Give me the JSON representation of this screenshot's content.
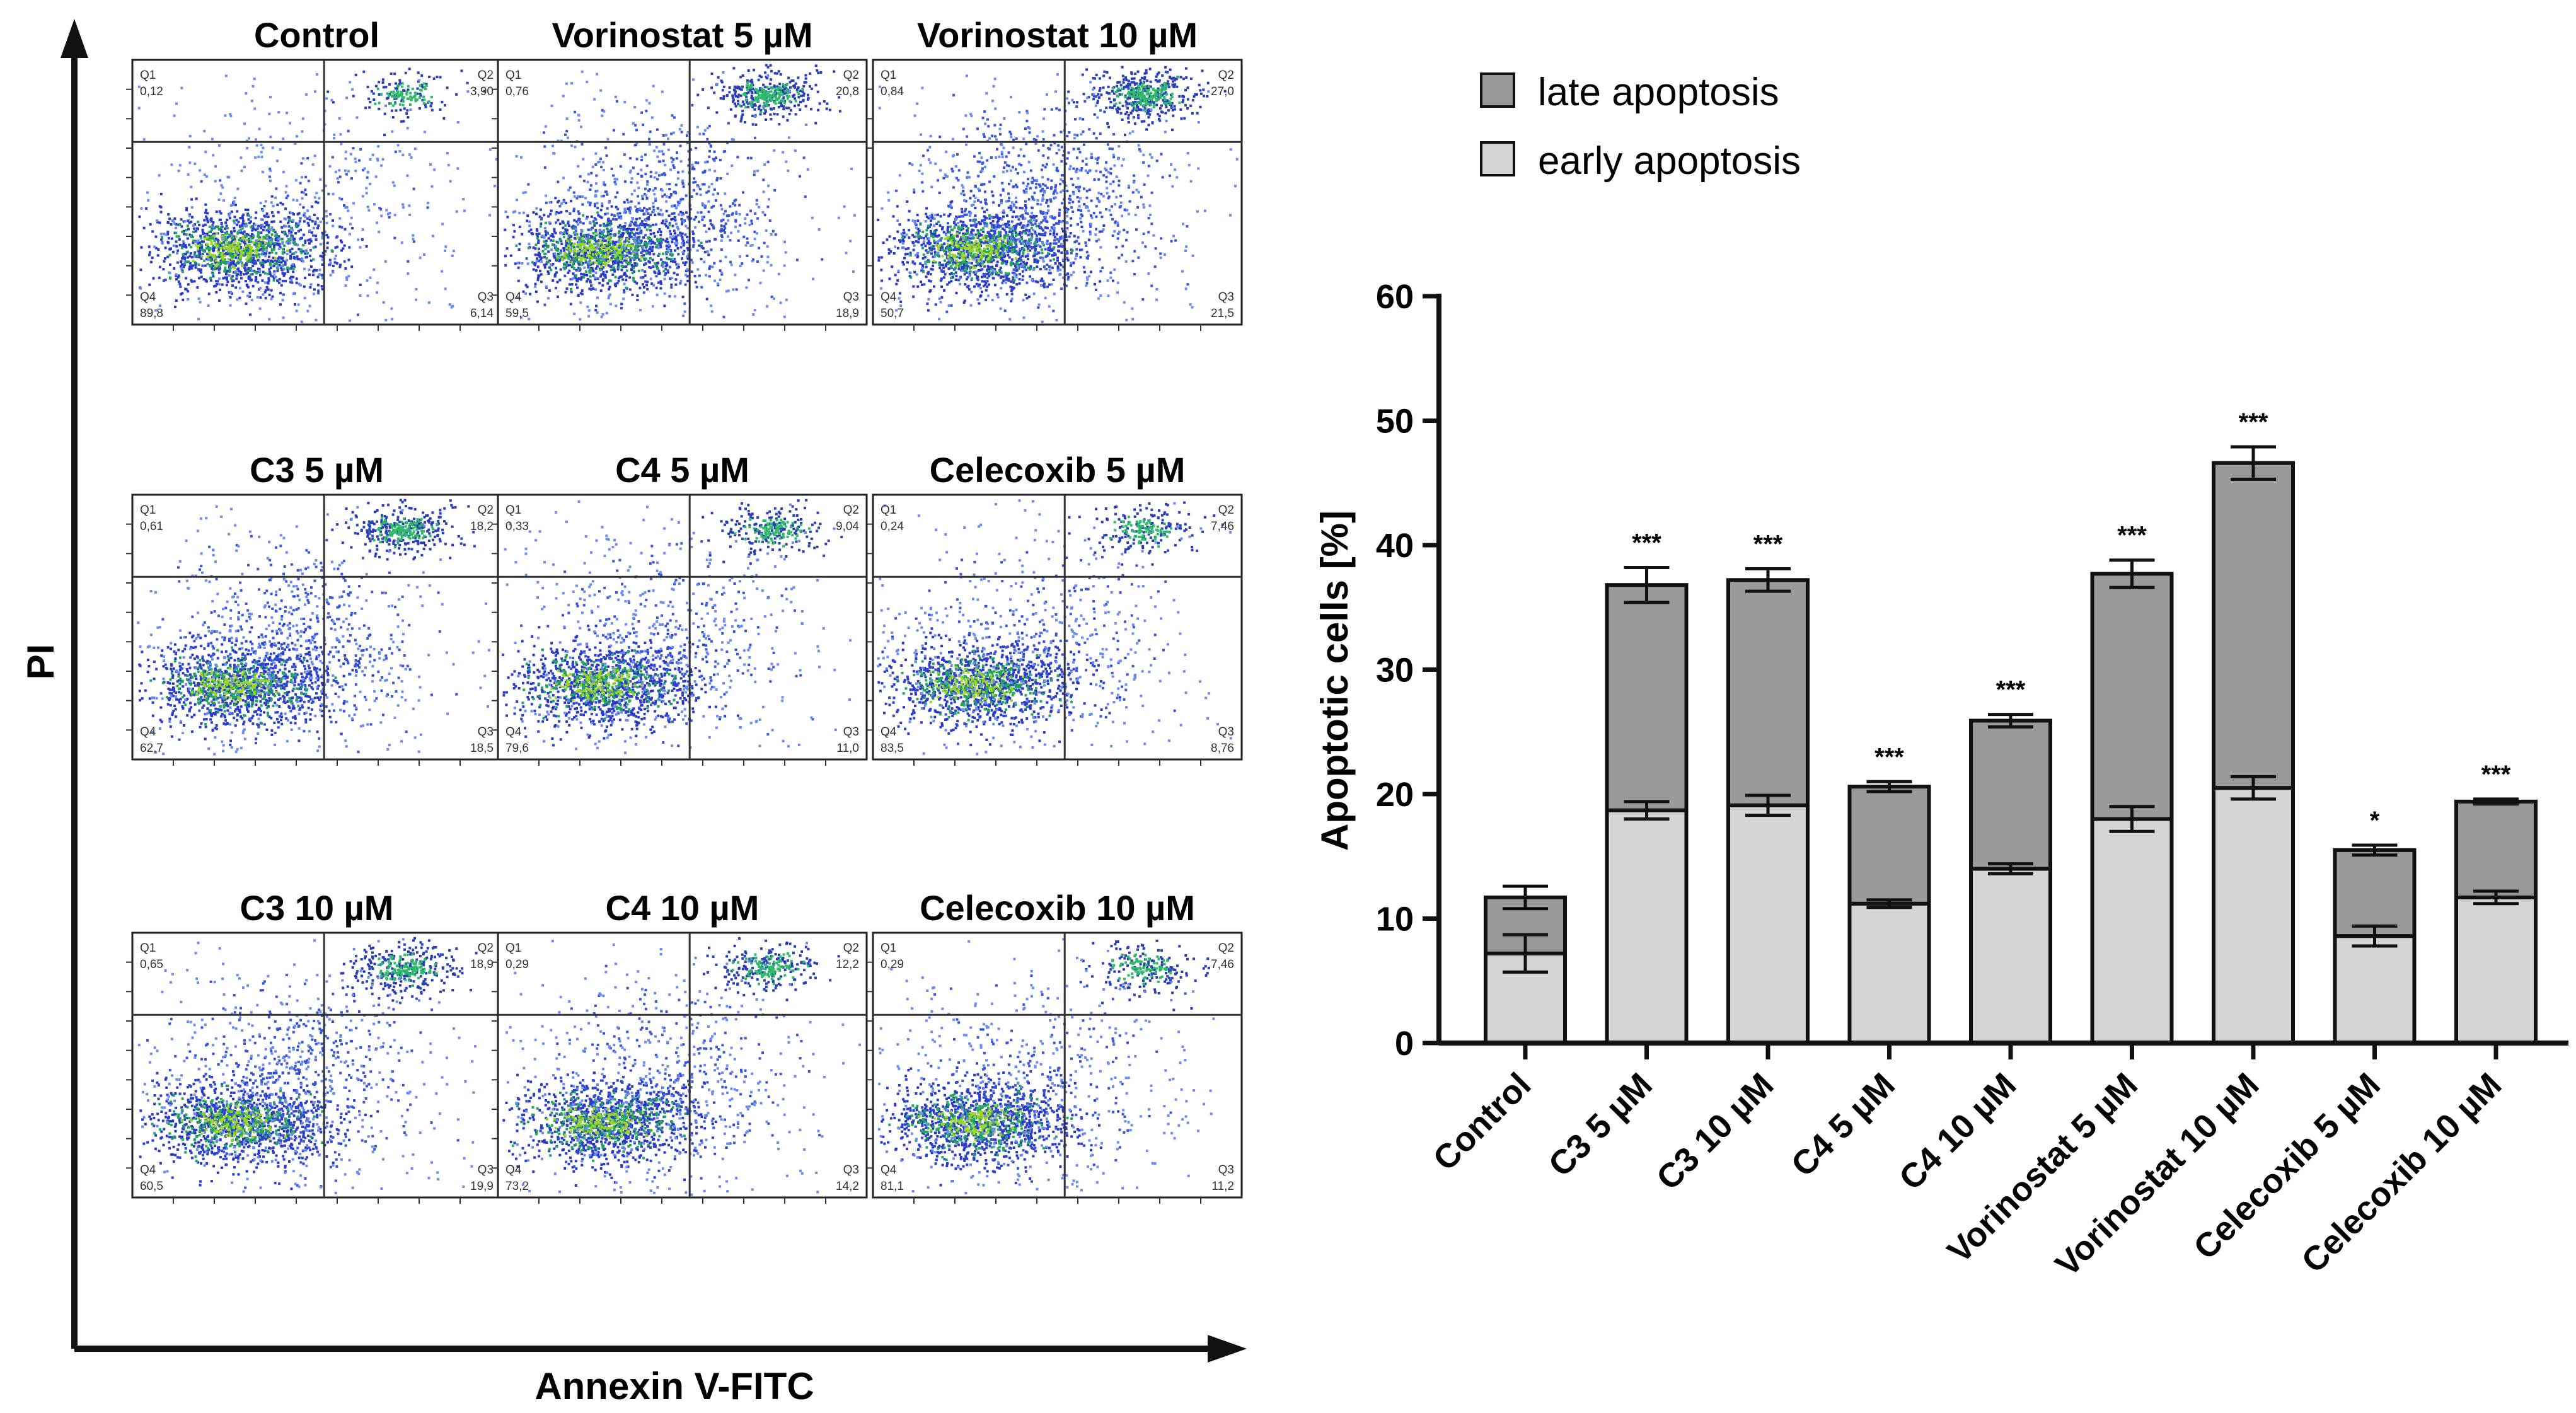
{
  "flow": {
    "y_axis_label": "PI",
    "x_axis_label": "Annexin V-FITC",
    "panels": [
      {
        "title": "Control",
        "q1": "Q1",
        "q1v": "0,12",
        "q2": "Q2",
        "q2v": "3,90",
        "q3": "Q3",
        "q3v": "6,14",
        "q4": "Q4",
        "q4v": "89,8",
        "spread": 0.1
      },
      {
        "title": "Vorinostat 5 µM",
        "q1": "Q1",
        "q1v": "0,76",
        "q2": "Q2",
        "q2v": "20,8",
        "q3": "Q3",
        "q3v": "18,9",
        "q4": "Q4",
        "q4v": "59,5",
        "spread": 0.6
      },
      {
        "title": "Vorinostat 10 µM",
        "q1": "Q1",
        "q1v": "0,84",
        "q2": "Q2",
        "q2v": "27,0",
        "q3": "Q3",
        "q3v": "21,5",
        "q4": "Q4",
        "q4v": "50,7",
        "spread": 0.8
      },
      {
        "title": "C3 5 µM",
        "q1": "Q1",
        "q1v": "0,61",
        "q2": "Q2",
        "q2v": "18,2",
        "q3": "Q3",
        "q3v": "18,5",
        "q4": "Q4",
        "q4v": "62,7",
        "spread": 0.55
      },
      {
        "title": "C4 5 µM",
        "q1": "Q1",
        "q1v": "0,33",
        "q2": "Q2",
        "q2v": "9,04",
        "q3": "Q3",
        "q3v": "11,0",
        "q4": "Q4",
        "q4v": "79,6",
        "spread": 0.3
      },
      {
        "title": "Celecoxib 5 µM",
        "q1": "Q1",
        "q1v": "0,24",
        "q2": "Q2",
        "q2v": "7,46",
        "q3": "Q3",
        "q3v": "8,76",
        "q4": "Q4",
        "q4v": "83,5",
        "spread": 0.25
      },
      {
        "title": "C3 10 µM",
        "q1": "Q1",
        "q1v": "0,65",
        "q2": "Q2",
        "q2v": "18,9",
        "q3": "Q3",
        "q3v": "19,9",
        "q4": "Q4",
        "q4v": "60,5",
        "spread": 0.55
      },
      {
        "title": "C4 10 µM",
        "q1": "Q1",
        "q1v": "0,29",
        "q2": "Q2",
        "q2v": "12,2",
        "q3": "Q3",
        "q3v": "14,2",
        "q4": "Q4",
        "q4v": "73,2",
        "spread": 0.35
      },
      {
        "title": "Celecoxib 10 µM",
        "q1": "Q1",
        "q1v": "0,29",
        "q2": "Q2",
        "q2v": "7,46",
        "q3": "Q3",
        "q3v": "11,2",
        "q4": "Q4",
        "q4v": "81,1",
        "spread": 0.25
      }
    ]
  },
  "chart_data": {
    "type": "bar",
    "stacked": true,
    "title": "",
    "xlabel": "",
    "ylabel": "Apoptotic cells [%]",
    "ylim": [
      0,
      60
    ],
    "yticks": [
      "0",
      "10",
      "20",
      "30",
      "40",
      "50",
      "60"
    ],
    "categories": [
      "Control",
      "C3 5 µM",
      "C3 10 µM",
      "C4 5 µM",
      "C4 10 µM",
      "Vorinostat 5 µM",
      "Vorinostat 10 µM",
      "Celecoxib 5 µM",
      "Celecoxib 10 µM"
    ],
    "series": [
      {
        "name": "early apoptosis",
        "color": "#d4d4d4",
        "values": [
          7.2,
          18.7,
          19.1,
          11.2,
          14.0,
          18.0,
          20.5,
          8.6,
          11.7
        ],
        "errors": [
          1.5,
          0.7,
          0.8,
          0.3,
          0.4,
          1.0,
          0.9,
          0.8,
          0.5
        ]
      },
      {
        "name": "late apoptosis",
        "color": "#9a9a9a",
        "values": [
          4.5,
          18.1,
          18.1,
          9.4,
          11.9,
          19.7,
          26.1,
          6.9,
          7.7
        ],
        "errors": [
          0.9,
          1.4,
          0.9,
          0.4,
          0.5,
          1.1,
          1.3,
          0.4,
          0.2
        ]
      }
    ],
    "significance": [
      "",
      "***",
      "***",
      "***",
      "***",
      "***",
      "***",
      "*",
      "***"
    ],
    "legend": [
      "late apoptosis",
      "early apoptosis"
    ],
    "legend_position": "top"
  }
}
